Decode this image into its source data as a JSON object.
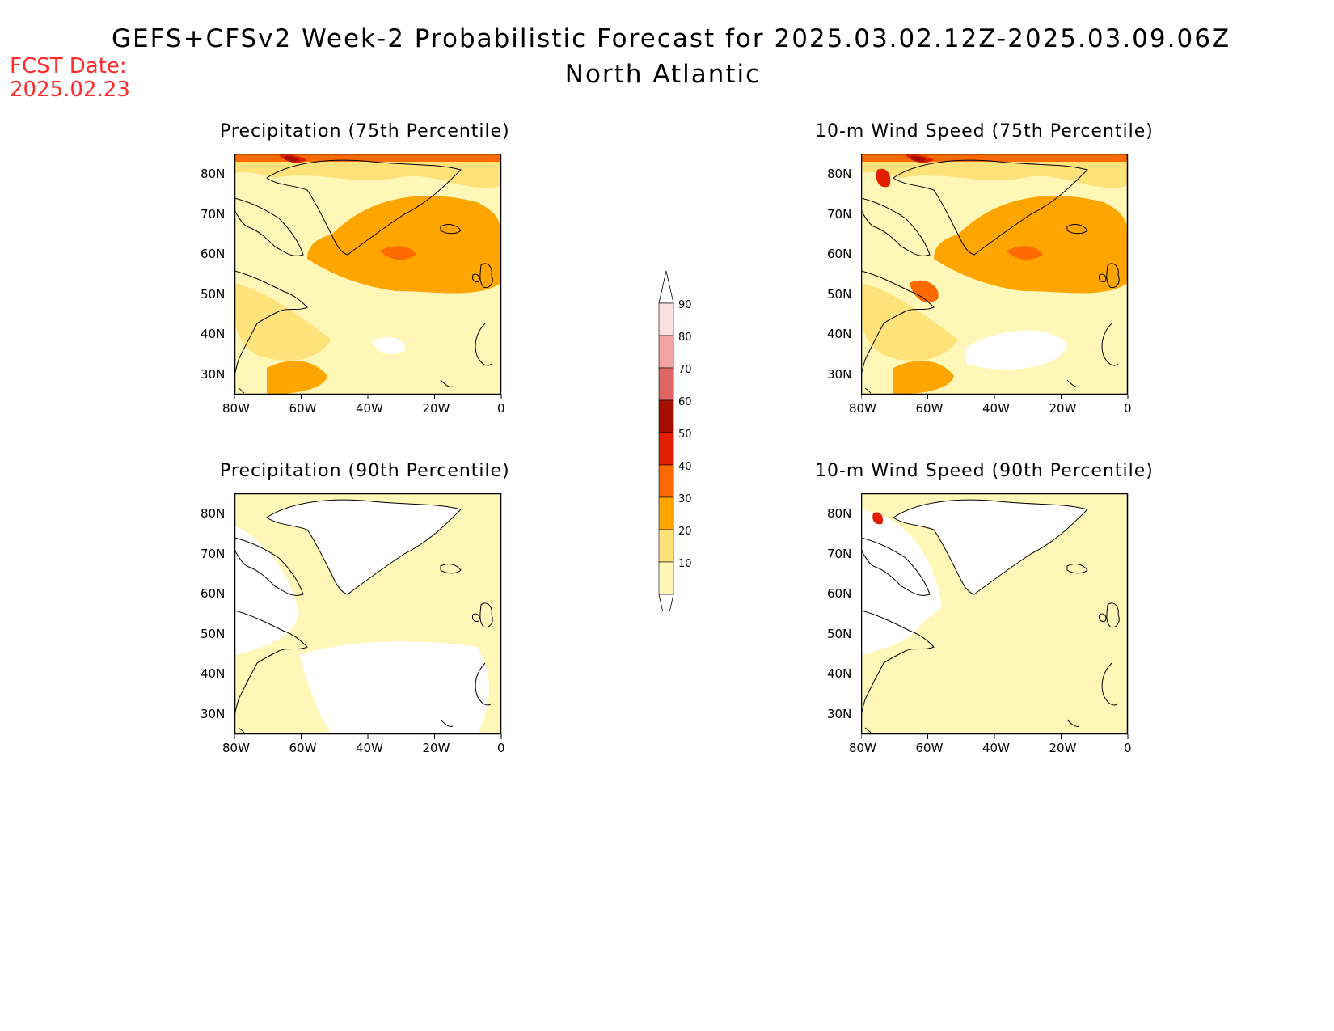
{
  "title": {
    "line1": "GEFS+CFSv2 Week-2 Probabilistic Forecast for 2025.03.02.12Z-2025.03.09.06Z",
    "line2": "North Atlantic"
  },
  "forecast_date": {
    "label": "FCST Date:",
    "value": "2025.02.23"
  },
  "panels": [
    {
      "id": "precip75",
      "title": "Precipitation (75th Percentile)"
    },
    {
      "id": "wind75",
      "title": "10-m Wind Speed (75th Percentile)"
    },
    {
      "id": "precip90",
      "title": "Precipitation (90th Percentile)"
    },
    {
      "id": "wind90",
      "title": "10-m Wind Speed (90th Percentile)"
    }
  ],
  "axes": {
    "lat_labels": [
      "80N",
      "70N",
      "60N",
      "50N",
      "40N",
      "30N"
    ],
    "lon_labels": [
      "80W",
      "60W",
      "40W",
      "20W",
      "0"
    ]
  },
  "colorbar": {
    "labels": [
      "90",
      "80",
      "70",
      "60",
      "50",
      "40",
      "30",
      "20",
      "10"
    ],
    "colors": [
      "#fde0e0",
      "#f4a3a3",
      "#e06666",
      "#a50f00",
      "#e02000",
      "#ff6a00",
      "#ffa500",
      "#ffe27a",
      "#fff7b8"
    ]
  },
  "fill_colors": {
    "none": "#ffffff",
    "p10": "#fff7b8",
    "p20": "#ffe27a",
    "p30": "#ffa500",
    "p40": "#ff6a00",
    "p50": "#e02000",
    "p60": "#a50f00",
    "coast": "#000000"
  }
}
